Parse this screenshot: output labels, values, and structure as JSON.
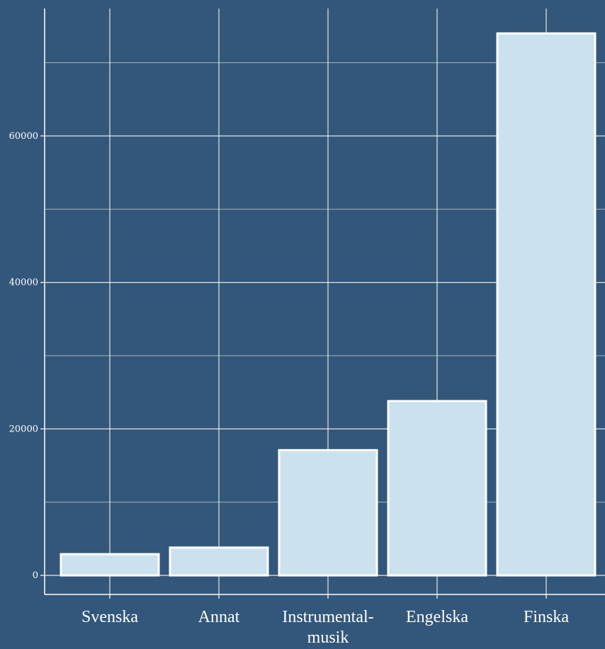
{
  "chart_data": {
    "type": "bar",
    "title": "",
    "xlabel": "",
    "ylabel": "",
    "categories": [
      "Svenska",
      "Annat",
      "Instrumental-musik",
      "Engelska",
      "Finska"
    ],
    "category_label_lines": [
      [
        "Svenska"
      ],
      [
        "Annat"
      ],
      [
        "Instrumental-",
        "musik"
      ],
      [
        "Engelska"
      ],
      [
        "Finska"
      ]
    ],
    "values": [
      2900,
      3800,
      17100,
      23800,
      74000
    ],
    "ylim": [
      -2600,
      77400
    ],
    "yticks": [
      0,
      20000,
      40000,
      60000
    ],
    "ytick_labels": [
      "0",
      "20000",
      "40000",
      "60000"
    ],
    "minor_gridlines": [
      10000,
      30000,
      50000,
      70000
    ],
    "grid": true,
    "colors": {
      "background": "#33577a",
      "bar_fill": "#cbe1ee",
      "bar_stroke": "#ffffff",
      "grid": "#ffffff",
      "text": "#ffffff"
    }
  }
}
